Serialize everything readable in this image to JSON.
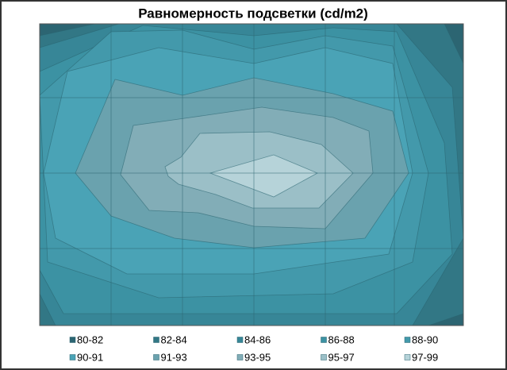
{
  "chart_data": {
    "type": "contour",
    "title": "Равномерность подсветки (cd/m2)",
    "series": [
      {
        "name": "80-82",
        "color": "#2c6572"
      },
      {
        "name": "82-84",
        "color": "#327785"
      },
      {
        "name": "84-86",
        "color": "#378697"
      },
      {
        "name": "86-88",
        "color": "#3c92a3"
      },
      {
        "name": "88-90",
        "color": "#4399ab"
      },
      {
        "name": "90-91",
        "color": "#4aa3b6"
      },
      {
        "name": "91-93",
        "color": "#6aa2ae"
      },
      {
        "name": "93-95",
        "color": "#82adb7"
      },
      {
        "name": "95-97",
        "color": "#9bbfc7"
      },
      {
        "name": "97-99",
        "color": "#b6d3d9"
      }
    ]
  }
}
